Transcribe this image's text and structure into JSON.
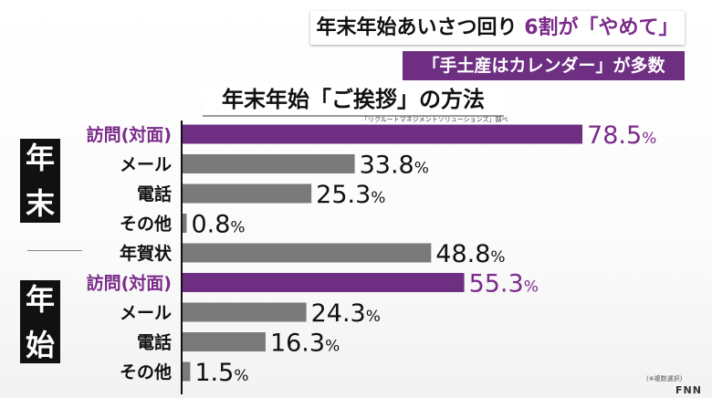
{
  "headline": {
    "part1": "年末年始あいさつ回り",
    "part2": "6割が「やめて」"
  },
  "subheadline": "「手土産はカレンダー」が多数",
  "chart_data": {
    "type": "bar",
    "orientation": "horizontal",
    "title": "年末年始「ご挨拶」の方法",
    "source": "「リクルートマネジメントソリューションズ」調べ",
    "unit": "%",
    "xlim": [
      0,
      100
    ],
    "groups": [
      {
        "label": "年末",
        "rows": [
          0,
          1,
          2,
          3
        ]
      },
      {
        "label": "年始",
        "rows": [
          5,
          6,
          7,
          8
        ]
      }
    ],
    "categories": [
      "訪問(対面)",
      "メール",
      "電話",
      "その他",
      "年賀状",
      "訪問(対面)",
      "メール",
      "電話",
      "その他"
    ],
    "values": [
      78.5,
      33.8,
      25.3,
      0.8,
      48.8,
      55.3,
      24.3,
      16.3,
      1.5
    ],
    "value_labels": [
      "78.5",
      "33.8",
      "25.3",
      "0.8",
      "48.8",
      "55.3",
      "24.3",
      "16.3",
      "1.5"
    ],
    "highlight": [
      true,
      false,
      false,
      false,
      false,
      true,
      false,
      false,
      false
    ],
    "colors": {
      "highlight": "#6e2f82",
      "normal": "#7a7a7a",
      "highlight_text": "#7b2b8a",
      "normal_text": "#111111"
    }
  },
  "footer": {
    "note": "(※複数選択)",
    "logo": "FNN"
  }
}
